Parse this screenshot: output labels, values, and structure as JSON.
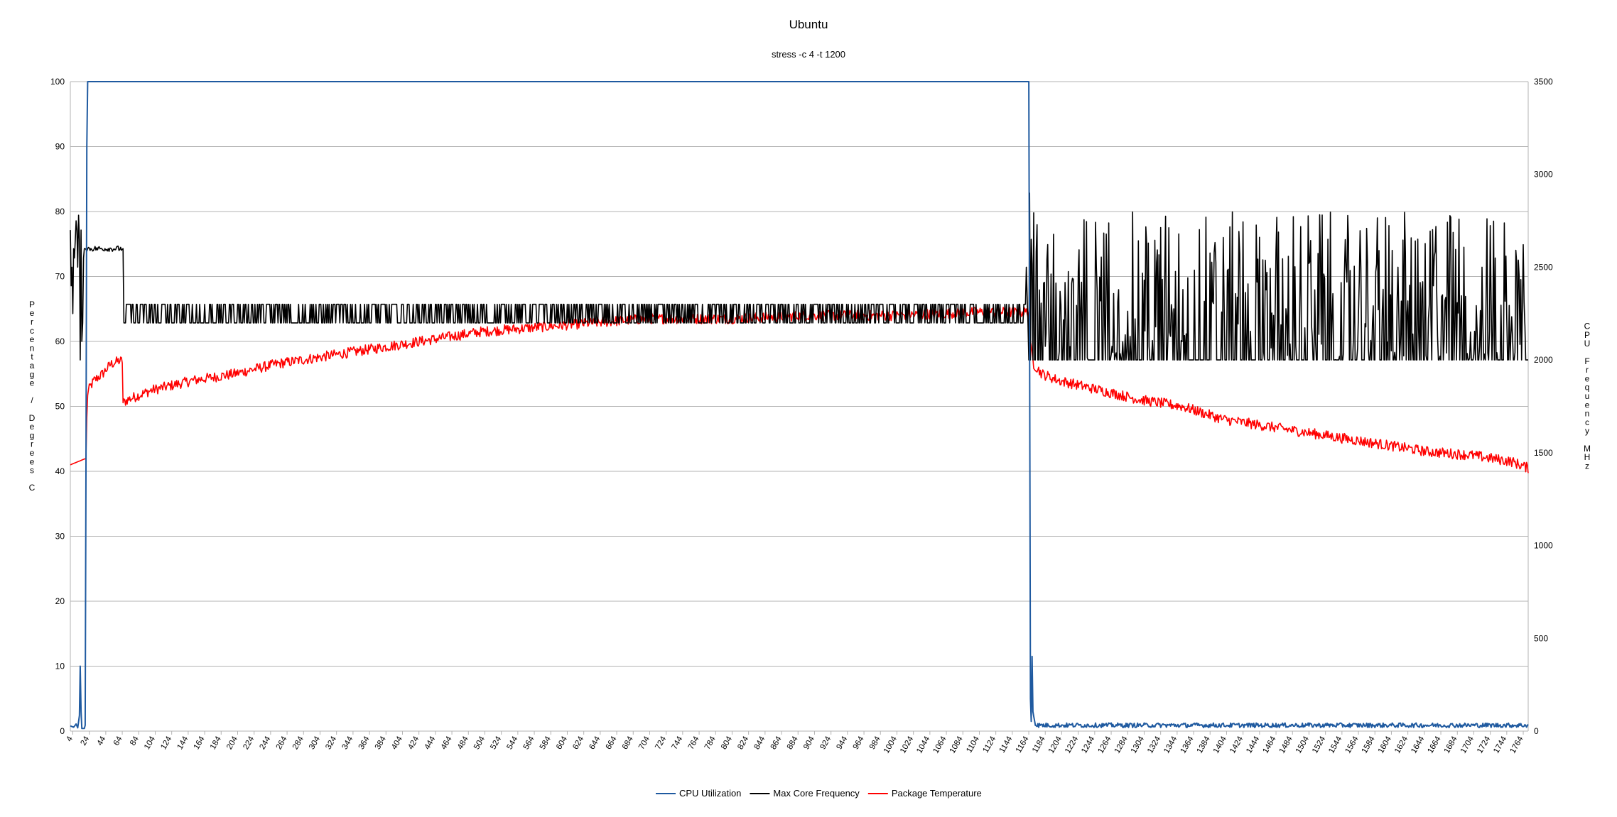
{
  "chart_data": {
    "type": "line",
    "title": "Ubuntu",
    "subtitle": "stress -c 4 -t 1200",
    "y_left": {
      "label": "Percentage / Degrees C",
      "range": [
        0,
        100
      ],
      "ticks": [
        "0",
        "10",
        "20",
        "30",
        "40",
        "50",
        "60",
        "70",
        "80",
        "90",
        "100"
      ]
    },
    "y_right": {
      "label": "CPU Frequency MHz",
      "range": [
        0,
        3500
      ],
      "ticks": [
        "0",
        "500",
        "1000",
        "1500",
        "2000",
        "2500",
        "3000",
        "3500"
      ]
    },
    "x": {
      "range": [
        1,
        1770
      ],
      "ticks": [
        "4",
        "24",
        "44",
        "64",
        "84",
        "104",
        "124",
        "144",
        "164",
        "184",
        "204",
        "224",
        "244",
        "264",
        "284",
        "304",
        "324",
        "344",
        "364",
        "384",
        "404",
        "424",
        "444",
        "464",
        "484",
        "504",
        "524",
        "544",
        "564",
        "584",
        "604",
        "624",
        "644",
        "664",
        "684",
        "704",
        "724",
        "744",
        "764",
        "784",
        "804",
        "824",
        "844",
        "864",
        "884",
        "904",
        "924",
        "944",
        "964",
        "984",
        "1004",
        "1024",
        "1044",
        "1064",
        "1084",
        "1104",
        "1124",
        "1144",
        "1164",
        "1184",
        "1204",
        "1224",
        "1244",
        "1264",
        "1284",
        "1304",
        "1324",
        "1344",
        "1364",
        "1384",
        "1404",
        "1424",
        "1444",
        "1464",
        "1484",
        "1504",
        "1524",
        "1544",
        "1564",
        "1584",
        "1604",
        "1624",
        "1644",
        "1664",
        "1684",
        "1704",
        "1724",
        "1744",
        "1764"
      ]
    },
    "grid": true,
    "legend_position": "bottom",
    "series": [
      {
        "name": "CPU Utilization",
        "color": "#1f5aa0",
        "axis": "left",
        "points": [
          [
            1,
            0.8
          ],
          [
            5,
            0.6
          ],
          [
            8,
            1.1
          ],
          [
            10,
            0.5
          ],
          [
            12,
            2.4
          ],
          [
            13,
            10
          ],
          [
            14,
            3
          ],
          [
            15,
            0.4
          ],
          [
            18,
            0.4
          ],
          [
            19,
            0.9
          ],
          [
            20,
            40
          ],
          [
            21,
            90
          ],
          [
            22,
            100
          ],
          [
            1164,
            100
          ],
          [
            1165,
            60
          ],
          [
            1166,
            5
          ],
          [
            1167,
            1.5
          ],
          [
            1168,
            11.5
          ],
          [
            1169,
            3
          ],
          [
            1172,
            0.9
          ],
          [
            1176,
            1.3
          ],
          [
            1190,
            0.9
          ],
          [
            1250,
            1.0
          ],
          [
            1350,
            0.9
          ],
          [
            1450,
            0.9
          ],
          [
            1520,
            1.3
          ],
          [
            1560,
            0.8
          ],
          [
            1650,
            0.8
          ],
          [
            1700,
            0.9
          ],
          [
            1760,
            1.0
          ],
          [
            1770,
            0.8
          ]
        ]
      },
      {
        "name": "Max Core Frequency",
        "color": "#000000",
        "axis": "right",
        "points": [
          [
            1,
            2700
          ],
          [
            2,
            2400
          ],
          [
            3,
            2500
          ],
          [
            4,
            2250
          ],
          [
            5,
            2600
          ],
          [
            6,
            2550
          ],
          [
            7,
            2650
          ],
          [
            8,
            2750
          ],
          [
            9,
            2700
          ],
          [
            10,
            2500
          ],
          [
            11,
            2780
          ],
          [
            12,
            2650
          ],
          [
            13,
            2000
          ],
          [
            14,
            2700
          ],
          [
            15,
            2100
          ],
          [
            16,
            2200
          ],
          [
            17,
            2550
          ],
          [
            18,
            2600
          ],
          [
            20,
            2600
          ],
          [
            35,
            2600
          ],
          [
            55,
            2600
          ],
          [
            65,
            2600
          ],
          [
            66,
            2200
          ],
          [
            68,
            2200
          ],
          [
            69,
            2300
          ],
          [
            1160,
            2300
          ],
          [
            1161,
            2500
          ],
          [
            1162,
            2350
          ],
          [
            1163,
            2200
          ],
          [
            1164,
            2000
          ],
          [
            1165,
            2900
          ],
          [
            1166,
            2000
          ],
          [
            1770,
            2000
          ]
        ]
      },
      {
        "name": "Package Temperature",
        "color": "#ff0000",
        "axis": "left",
        "points": [
          [
            1,
            41
          ],
          [
            20,
            42
          ],
          [
            21,
            48
          ],
          [
            22,
            52
          ],
          [
            25,
            53
          ],
          [
            30,
            54
          ],
          [
            40,
            55
          ],
          [
            50,
            56.5
          ],
          [
            60,
            57
          ],
          [
            64,
            57
          ],
          [
            65,
            50.5
          ],
          [
            70,
            51
          ],
          [
            80,
            51.5
          ],
          [
            100,
            52.5
          ],
          [
            150,
            54
          ],
          [
            200,
            55
          ],
          [
            250,
            56.5
          ],
          [
            300,
            57.5
          ],
          [
            350,
            58.5
          ],
          [
            400,
            59.5
          ],
          [
            450,
            60.5
          ],
          [
            500,
            61.5
          ],
          [
            550,
            62
          ],
          [
            600,
            62.5
          ],
          [
            650,
            63
          ],
          [
            700,
            63.5
          ],
          [
            800,
            63.5
          ],
          [
            900,
            64
          ],
          [
            1000,
            64
          ],
          [
            1100,
            64.5
          ],
          [
            1164,
            64.5
          ],
          [
            1165,
            60
          ],
          [
            1170,
            56.5
          ],
          [
            1180,
            55
          ],
          [
            1200,
            54
          ],
          [
            1250,
            52.5
          ],
          [
            1300,
            51
          ],
          [
            1350,
            50
          ],
          [
            1400,
            48
          ],
          [
            1450,
            47
          ],
          [
            1500,
            46
          ],
          [
            1550,
            45
          ],
          [
            1600,
            44
          ],
          [
            1650,
            43
          ],
          [
            1700,
            42.5
          ],
          [
            1750,
            41.5
          ],
          [
            1770,
            40.5
          ]
        ]
      }
    ]
  }
}
